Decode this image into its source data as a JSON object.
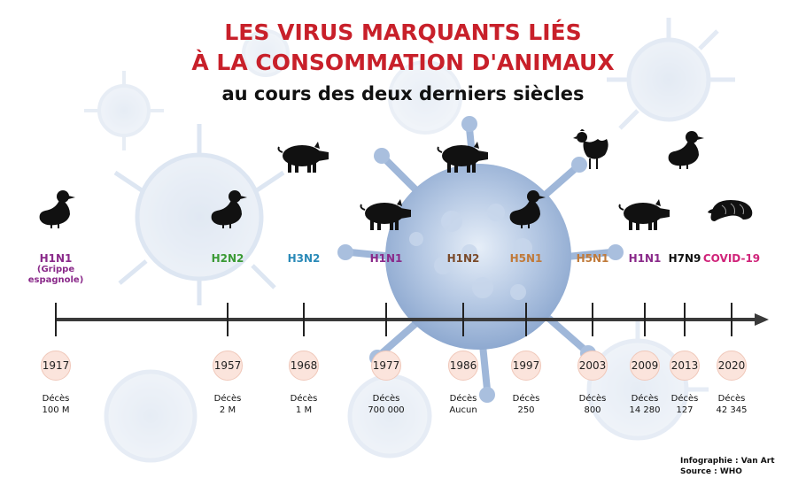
{
  "title": {
    "line1": "LES VIRUS MARQUANTS LIÉS",
    "line2": "À LA CONSOMMATION D'ANIMAUX",
    "line3": "au cours des deux derniers siècles"
  },
  "colors": {
    "title": "#c8202a",
    "H1N1": "#8a2a8a",
    "H2N2": "#3a9a35",
    "H3N2": "#2a8ab8",
    "H1N2": "#7a4a2a",
    "H5N1": "#c07a3a",
    "H7N9": "#111111",
    "COVID-19": "#d0247a"
  },
  "events": [
    {
      "year": "1917",
      "strain": "H1N1",
      "note": "(Grippe espagnole)",
      "deaths_label": "Décès",
      "deaths": "100 M",
      "animal": "duck-icon"
    },
    {
      "year": "1957",
      "strain": "H2N2",
      "note": "",
      "deaths_label": "Décès",
      "deaths": "2 M",
      "animal": "duck-icon"
    },
    {
      "year": "1968",
      "strain": "H3N2",
      "note": "",
      "deaths_label": "Décès",
      "deaths": "1 M",
      "animal": "pig-icon"
    },
    {
      "year": "1977",
      "strain": "H1N1",
      "note": "",
      "deaths_label": "Décès",
      "deaths": "700 000",
      "animal": "pig-icon"
    },
    {
      "year": "1986",
      "strain": "H1N2",
      "note": "",
      "deaths_label": "Décès",
      "deaths": "Aucun",
      "animal": "pig-icon"
    },
    {
      "year": "1997",
      "strain": "H5N1",
      "note": "",
      "deaths_label": "Décès",
      "deaths": "250",
      "animal": "duck-icon"
    },
    {
      "year": "2003",
      "strain": "H5N1",
      "note": "",
      "deaths_label": "Décès",
      "deaths": "800",
      "animal": "chicken-icon"
    },
    {
      "year": "2009",
      "strain": "H1N1",
      "note": "",
      "deaths_label": "Décès",
      "deaths": "14 280",
      "animal": "pig-icon"
    },
    {
      "year": "2013",
      "strain": "H7N9",
      "note": "",
      "deaths_label": "Décès",
      "deaths": "127",
      "animal": "duck-icon"
    },
    {
      "year": "2020",
      "strain": "COVID-19",
      "note": "",
      "deaths_label": "Décès",
      "deaths": "42 345",
      "animal": "pangolin-icon"
    }
  ],
  "credits": {
    "infographie": "Infographie : Van Art",
    "source": "Source : WHO"
  }
}
